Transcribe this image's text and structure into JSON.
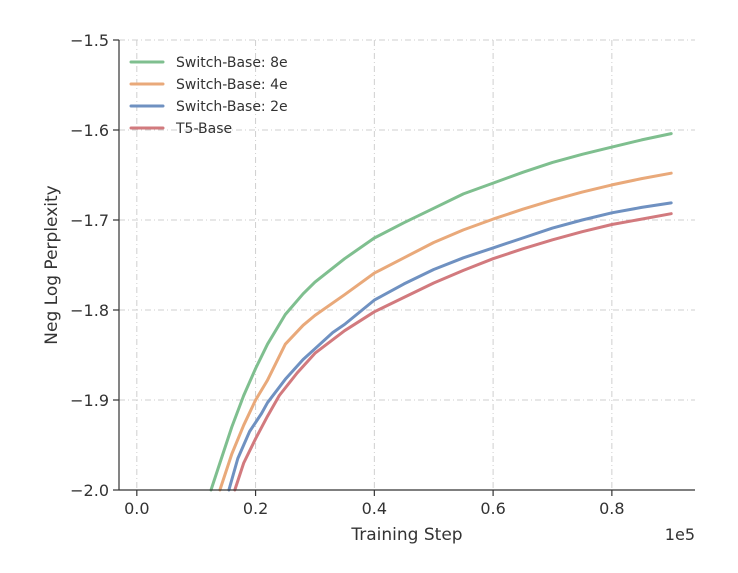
{
  "chart_data": {
    "type": "line",
    "title": "",
    "xlabel": "Training Step",
    "ylabel": "Neg Log Perplexity",
    "x_offset_text": "1e5",
    "xlim": [
      -0.03,
      0.94
    ],
    "ylim": [
      -2.0,
      -1.5
    ],
    "xticks": [
      0.0,
      0.2,
      0.4,
      0.6,
      0.8
    ],
    "xtick_labels": [
      "0.0",
      "0.2",
      "0.4",
      "0.6",
      "0.8"
    ],
    "yticks": [
      -2.0,
      -1.9,
      -1.8,
      -1.7,
      -1.6,
      -1.5
    ],
    "ytick_labels": [
      "−2.0",
      "−1.9",
      "−1.8",
      "−1.7",
      "−1.6",
      "−1.5"
    ],
    "grid": true,
    "legend_position": "upper-left",
    "series": [
      {
        "name": "Switch-Base: 8e",
        "color": "#7fbf8f",
        "x": [
          0.125,
          0.14,
          0.16,
          0.18,
          0.2,
          0.22,
          0.25,
          0.28,
          0.3,
          0.35,
          0.4,
          0.45,
          0.5,
          0.55,
          0.6,
          0.65,
          0.7,
          0.75,
          0.8,
          0.85,
          0.9
        ],
        "y": [
          -2.0,
          -1.97,
          -1.93,
          -1.895,
          -1.865,
          -1.838,
          -1.805,
          -1.782,
          -1.769,
          -1.743,
          -1.72,
          -1.703,
          -1.687,
          -1.671,
          -1.659,
          -1.647,
          -1.636,
          -1.627,
          -1.619,
          -1.611,
          -1.604
        ]
      },
      {
        "name": "Switch-Base: 4e",
        "color": "#e9a97a",
        "x": [
          0.14,
          0.16,
          0.18,
          0.2,
          0.22,
          0.25,
          0.28,
          0.3,
          0.35,
          0.4,
          0.45,
          0.5,
          0.55,
          0.6,
          0.65,
          0.7,
          0.75,
          0.8,
          0.85,
          0.9
        ],
        "y": [
          -2.0,
          -1.96,
          -1.928,
          -1.9,
          -1.878,
          -1.838,
          -1.817,
          -1.806,
          -1.783,
          -1.759,
          -1.742,
          -1.725,
          -1.711,
          -1.699,
          -1.688,
          -1.678,
          -1.669,
          -1.661,
          -1.654,
          -1.648
        ]
      },
      {
        "name": "Switch-Base: 2e",
        "color": "#6f91c1",
        "x": [
          0.155,
          0.17,
          0.19,
          0.21,
          0.22,
          0.25,
          0.28,
          0.3,
          0.33,
          0.35,
          0.4,
          0.45,
          0.5,
          0.55,
          0.6,
          0.65,
          0.7,
          0.75,
          0.8,
          0.85,
          0.9
        ],
        "y": [
          -2.0,
          -1.965,
          -1.935,
          -1.915,
          -1.903,
          -1.877,
          -1.855,
          -1.843,
          -1.825,
          -1.816,
          -1.789,
          -1.771,
          -1.755,
          -1.742,
          -1.731,
          -1.72,
          -1.709,
          -1.7,
          -1.692,
          -1.686,
          -1.681
        ]
      },
      {
        "name": "T5-Base",
        "color": "#d27a7e",
        "x": [
          0.165,
          0.18,
          0.2,
          0.22,
          0.24,
          0.27,
          0.3,
          0.35,
          0.4,
          0.45,
          0.5,
          0.55,
          0.6,
          0.65,
          0.7,
          0.75,
          0.8,
          0.85,
          0.9
        ],
        "y": [
          -2.0,
          -1.97,
          -1.943,
          -1.918,
          -1.895,
          -1.87,
          -1.848,
          -1.823,
          -1.802,
          -1.786,
          -1.77,
          -1.756,
          -1.743,
          -1.732,
          -1.722,
          -1.713,
          -1.705,
          -1.699,
          -1.693
        ]
      }
    ]
  }
}
